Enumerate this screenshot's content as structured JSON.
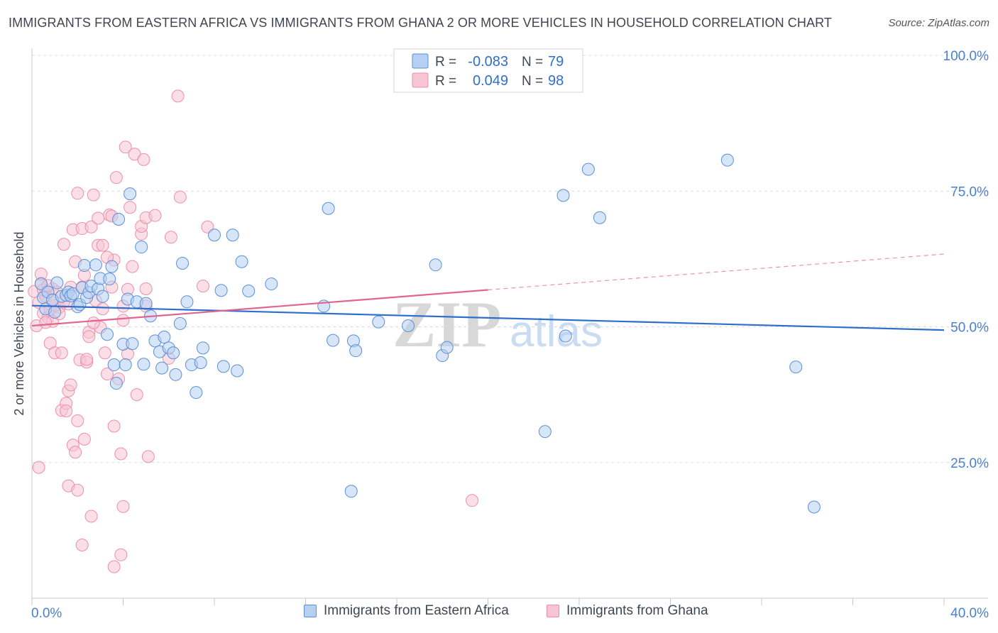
{
  "title": "IMMIGRANTS FROM EASTERN AFRICA VS IMMIGRANTS FROM GHANA 2 OR MORE VEHICLES IN HOUSEHOLD CORRELATION CHART",
  "source": "Source: ZipAtlas.com",
  "watermark": {
    "zip": "ZIP",
    "atlas": "atlas"
  },
  "colors": {
    "blue": "#5b8fd6",
    "blue_fill": "#b6cff3",
    "blue_line": "#2f6fcc",
    "pink": "#ee8fab",
    "pink_fill": "#f7c4d4",
    "pink_line": "#e2658f",
    "axis_text": "#4a7fd0",
    "grid": "#dcdcdc"
  },
  "legend_top": {
    "rows": [
      {
        "r_label": "R =",
        "r_value": "-0.083",
        "n_label": "N =",
        "n_value": "79"
      },
      {
        "r_label": "R =",
        "r_value": "0.049",
        "n_label": "N =",
        "n_value": "98"
      }
    ]
  },
  "legend_bottom": {
    "items": [
      {
        "label": "Immigrants from Eastern Africa"
      },
      {
        "label": "Immigrants from Ghana"
      }
    ]
  },
  "chart_data": {
    "type": "scatter",
    "xlabel": "",
    "ylabel": "2 or more Vehicles in Household",
    "xlim": [
      0,
      40
    ],
    "ylim": [
      0,
      100
    ],
    "x_tick_labels": [
      "0.0%",
      "40.0%"
    ],
    "y_tick_labels": [
      "25.0%",
      "50.0%",
      "75.0%",
      "100.0%"
    ],
    "y_ticks": [
      25,
      50,
      75,
      100
    ],
    "grid": true,
    "legend_position": "top-center",
    "series": [
      {
        "name": "Immigrants from Eastern Africa",
        "r": -0.083,
        "n": 79,
        "trend": {
          "x": [
            0,
            40
          ],
          "y": [
            53.9,
            49.4
          ]
        },
        "points": [
          [
            0.4,
            57.9
          ],
          [
            0.5,
            55.4
          ],
          [
            0.6,
            53.3
          ],
          [
            0.7,
            56.4
          ],
          [
            0.9,
            54.9
          ],
          [
            1.0,
            52.7
          ],
          [
            1.1,
            58.1
          ],
          [
            1.3,
            55.6
          ],
          [
            1.5,
            55.8
          ],
          [
            1.6,
            56.4
          ],
          [
            1.7,
            55.7
          ],
          [
            1.8,
            56.1
          ],
          [
            2.0,
            53.7
          ],
          [
            2.1,
            54.1
          ],
          [
            2.2,
            57.2
          ],
          [
            2.3,
            61.3
          ],
          [
            2.4,
            55.4
          ],
          [
            2.5,
            56.3
          ],
          [
            2.6,
            57.5
          ],
          [
            2.8,
            61.4
          ],
          [
            2.9,
            57.0
          ],
          [
            3.0,
            58.9
          ],
          [
            3.1,
            55.6
          ],
          [
            3.3,
            48.6
          ],
          [
            3.4,
            58.8
          ],
          [
            3.5,
            61.1
          ],
          [
            3.6,
            43.0
          ],
          [
            3.7,
            39.6
          ],
          [
            3.8,
            69.8
          ],
          [
            4.0,
            46.8
          ],
          [
            4.1,
            43.0
          ],
          [
            4.2,
            55.1
          ],
          [
            4.3,
            74.5
          ],
          [
            4.4,
            46.9
          ],
          [
            4.6,
            54.6
          ],
          [
            4.8,
            64.7
          ],
          [
            4.9,
            43.1
          ],
          [
            5.0,
            54.3
          ],
          [
            5.2,
            52.0
          ],
          [
            5.4,
            47.4
          ],
          [
            5.6,
            45.4
          ],
          [
            5.7,
            42.4
          ],
          [
            5.8,
            48.1
          ],
          [
            6.0,
            46.1
          ],
          [
            6.2,
            45.2
          ],
          [
            6.3,
            41.2
          ],
          [
            6.5,
            50.6
          ],
          [
            6.6,
            61.7
          ],
          [
            6.8,
            54.6
          ],
          [
            7.0,
            43.0
          ],
          [
            7.2,
            37.9
          ],
          [
            7.4,
            43.4
          ],
          [
            7.5,
            46.1
          ],
          [
            8.0,
            66.9
          ],
          [
            8.3,
            56.7
          ],
          [
            8.4,
            42.7
          ],
          [
            8.8,
            66.9
          ],
          [
            9.0,
            41.9
          ],
          [
            9.2,
            62.0
          ],
          [
            9.5,
            56.6
          ],
          [
            10.5,
            57.9
          ],
          [
            12.8,
            53.8
          ],
          [
            13.0,
            71.8
          ],
          [
            13.2,
            47.5
          ],
          [
            14.0,
            19.7
          ],
          [
            14.1,
            47.4
          ],
          [
            14.2,
            45.6
          ],
          [
            15.2,
            50.9
          ],
          [
            16.5,
            50.2
          ],
          [
            17.7,
            61.4
          ],
          [
            18.0,
            44.7
          ],
          [
            18.2,
            46.2
          ],
          [
            22.5,
            30.7
          ],
          [
            23.3,
            74.2
          ],
          [
            23.4,
            48.3
          ],
          [
            24.4,
            79.0
          ],
          [
            24.9,
            70.1
          ],
          [
            30.5,
            80.7
          ],
          [
            33.5,
            42.6
          ],
          [
            34.3,
            16.8
          ]
        ]
      },
      {
        "name": "Immigrants from Ghana",
        "r": 0.049,
        "n": 98,
        "trend": {
          "x": [
            0,
            40
          ],
          "y": [
            50.2,
            63.4
          ]
        },
        "points": [
          [
            0.1,
            56.5
          ],
          [
            0.2,
            50.2
          ],
          [
            0.3,
            54.5
          ],
          [
            0.4,
            58.0
          ],
          [
            0.4,
            59.7
          ],
          [
            0.5,
            52.5
          ],
          [
            0.6,
            55.6
          ],
          [
            0.7,
            51.7
          ],
          [
            0.8,
            53.2
          ],
          [
            0.8,
            47.0
          ],
          [
            0.9,
            57.0
          ],
          [
            0.9,
            51.0
          ],
          [
            1.0,
            45.2
          ],
          [
            1.1,
            56.4
          ],
          [
            1.2,
            53.6
          ],
          [
            1.3,
            34.6
          ],
          [
            1.3,
            45.2
          ],
          [
            1.4,
            65.2
          ],
          [
            1.5,
            35.9
          ],
          [
            1.5,
            34.5
          ],
          [
            1.6,
            54.2
          ],
          [
            1.6,
            38.2
          ],
          [
            1.7,
            57.3
          ],
          [
            1.7,
            39.3
          ],
          [
            1.8,
            67.9
          ],
          [
            1.8,
            28.2
          ],
          [
            1.9,
            26.9
          ],
          [
            1.9,
            62.0
          ],
          [
            2.0,
            74.6
          ],
          [
            2.0,
            32.7
          ],
          [
            2.1,
            43.9
          ],
          [
            2.2,
            57.3
          ],
          [
            2.2,
            68.1
          ],
          [
            2.3,
            59.5
          ],
          [
            2.3,
            29.3
          ],
          [
            2.4,
            43.5
          ],
          [
            2.5,
            49.0
          ],
          [
            2.5,
            48.2
          ],
          [
            2.6,
            68.4
          ],
          [
            2.6,
            15.1
          ],
          [
            2.7,
            74.3
          ],
          [
            2.8,
            54.8
          ],
          [
            2.9,
            65.0
          ],
          [
            2.9,
            70.0
          ],
          [
            3.0,
            49.9
          ],
          [
            3.1,
            53.3
          ],
          [
            3.1,
            65.0
          ],
          [
            3.2,
            45.2
          ],
          [
            3.3,
            41.3
          ],
          [
            3.4,
            70.6
          ],
          [
            3.5,
            70.4
          ],
          [
            3.5,
            57.3
          ],
          [
            3.6,
            62.3
          ],
          [
            3.6,
            31.7
          ],
          [
            3.7,
            77.5
          ],
          [
            3.8,
            40.4
          ],
          [
            3.9,
            26.6
          ],
          [
            4.0,
            51.2
          ],
          [
            4.0,
            53.8
          ],
          [
            4.1,
            83.1
          ],
          [
            4.2,
            56.9
          ],
          [
            4.2,
            45.0
          ],
          [
            4.3,
            72.0
          ],
          [
            4.4,
            61.1
          ],
          [
            4.5,
            81.8
          ],
          [
            4.6,
            37.5
          ],
          [
            4.8,
            67.1
          ],
          [
            4.8,
            68.5
          ],
          [
            4.9,
            80.8
          ],
          [
            5.0,
            70.1
          ],
          [
            5.0,
            57.0
          ],
          [
            5.0,
            53.8
          ],
          [
            5.1,
            26.1
          ],
          [
            5.4,
            70.5
          ],
          [
            6.0,
            44.2
          ],
          [
            6.1,
            66.5
          ],
          [
            6.4,
            92.5
          ],
          [
            6.5,
            73.9
          ],
          [
            7.5,
            57.5
          ],
          [
            7.7,
            68.4
          ],
          [
            0.3,
            24.1
          ],
          [
            1.6,
            20.7
          ],
          [
            2.0,
            19.9
          ],
          [
            2.2,
            9.8
          ],
          [
            3.6,
            5.8
          ],
          [
            3.9,
            8.0
          ],
          [
            4.0,
            16.9
          ],
          [
            19.3,
            18.0
          ],
          [
            0.5,
            56.8
          ],
          [
            1.2,
            52.4
          ],
          [
            0.7,
            57.6
          ],
          [
            1.0,
            53.9
          ],
          [
            2.7,
            50.7
          ],
          [
            3.3,
            62.8
          ],
          [
            0.9,
            55.0
          ],
          [
            2.4,
            44.0
          ],
          [
            0.6,
            50.8
          ],
          [
            1.4,
            54.6
          ]
        ]
      }
    ]
  }
}
